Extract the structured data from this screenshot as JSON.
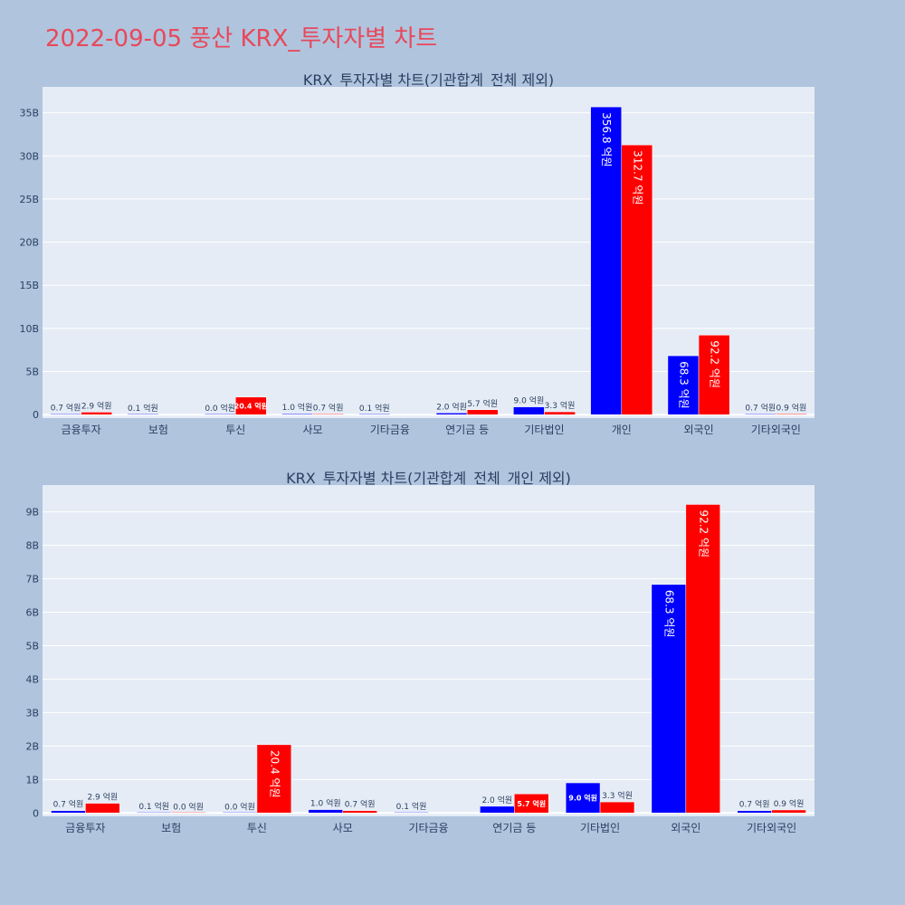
{
  "page": {
    "title": "2022-09-05 풍산 KRX_투자자별 차트"
  },
  "colors": {
    "buy": "#0000ff",
    "sell": "#ff0000",
    "plot_bg": "#e5ecf6",
    "page_bg": "#b0c4de",
    "title": "#e8485a"
  },
  "chart_data": [
    {
      "type": "bar",
      "title": "KRX_투자자별 차트(기관합계_전체 제외)",
      "categories": [
        "금융투자",
        "보험",
        "투신",
        "사모",
        "기타금융",
        "연기금 등",
        "기타법인",
        "개인",
        "외국인",
        "기타외국인"
      ],
      "series": [
        {
          "color": "#0000ff",
          "values": [
            0.07,
            0.01,
            0.0,
            0.1,
            0.01,
            0.2,
            0.9,
            35.68,
            6.83,
            0.07
          ]
        },
        {
          "color": "#ff0000",
          "values": [
            0.29,
            null,
            2.04,
            0.07,
            null,
            0.57,
            0.33,
            31.27,
            9.22,
            0.09
          ]
        }
      ],
      "labels": [
        [
          "0.7 억원",
          "0.1 억원",
          "0.0 억원",
          "1.0 억원",
          "0.1 억원",
          "2.0 억원",
          "9.0 억원",
          "356.8 억원",
          "68.3 억원",
          "0.7 억원"
        ],
        [
          "2.9 억원",
          "",
          "20.4 억원",
          "0.7 억원",
          "",
          "5.7 억원",
          "3.3 억원",
          "312.7 억원",
          "92.2 억원",
          "0.9 억원"
        ]
      ],
      "yticks": [
        0,
        5,
        10,
        15,
        20,
        25,
        30,
        35
      ],
      "ytick_labels": [
        "0",
        "5B",
        "10B",
        "15B",
        "20B",
        "25B",
        "30B",
        "35B"
      ],
      "ylim": [
        -0.4,
        38
      ],
      "grid": true
    },
    {
      "type": "bar",
      "title": "KRX_투자자별 차트(기관합계_전체_개인 제외)",
      "categories": [
        "금융투자",
        "보험",
        "투신",
        "사모",
        "기타금융",
        "연기금 등",
        "기타법인",
        "외국인",
        "기타외국인"
      ],
      "series": [
        {
          "color": "#0000ff",
          "values": [
            0.07,
            0.01,
            0.0,
            0.1,
            0.01,
            0.2,
            0.9,
            6.83,
            0.07
          ]
        },
        {
          "color": "#ff0000",
          "values": [
            0.29,
            0.0,
            2.04,
            0.07,
            null,
            0.57,
            0.33,
            9.22,
            0.09
          ]
        }
      ],
      "labels": [
        [
          "0.7 억원",
          "0.1 억원",
          "0.0 억원",
          "1.0 억원",
          "0.1 억원",
          "2.0 억원",
          "9.0 억원",
          "68.3 억원",
          "0.7 억원"
        ],
        [
          "2.9 억원",
          "0.0 억원",
          "20.4 억원",
          "0.7 억원",
          "",
          "5.7 억원",
          "3.3 억원",
          "92.2 억원",
          "0.9 억원"
        ]
      ],
      "yticks": [
        0,
        1,
        2,
        3,
        4,
        5,
        6,
        7,
        8,
        9
      ],
      "ytick_labels": [
        "0",
        "1B",
        "2B",
        "3B",
        "4B",
        "5B",
        "6B",
        "7B",
        "8B",
        "9B"
      ],
      "ylim": [
        -0.1,
        9.8
      ],
      "grid": true
    }
  ]
}
